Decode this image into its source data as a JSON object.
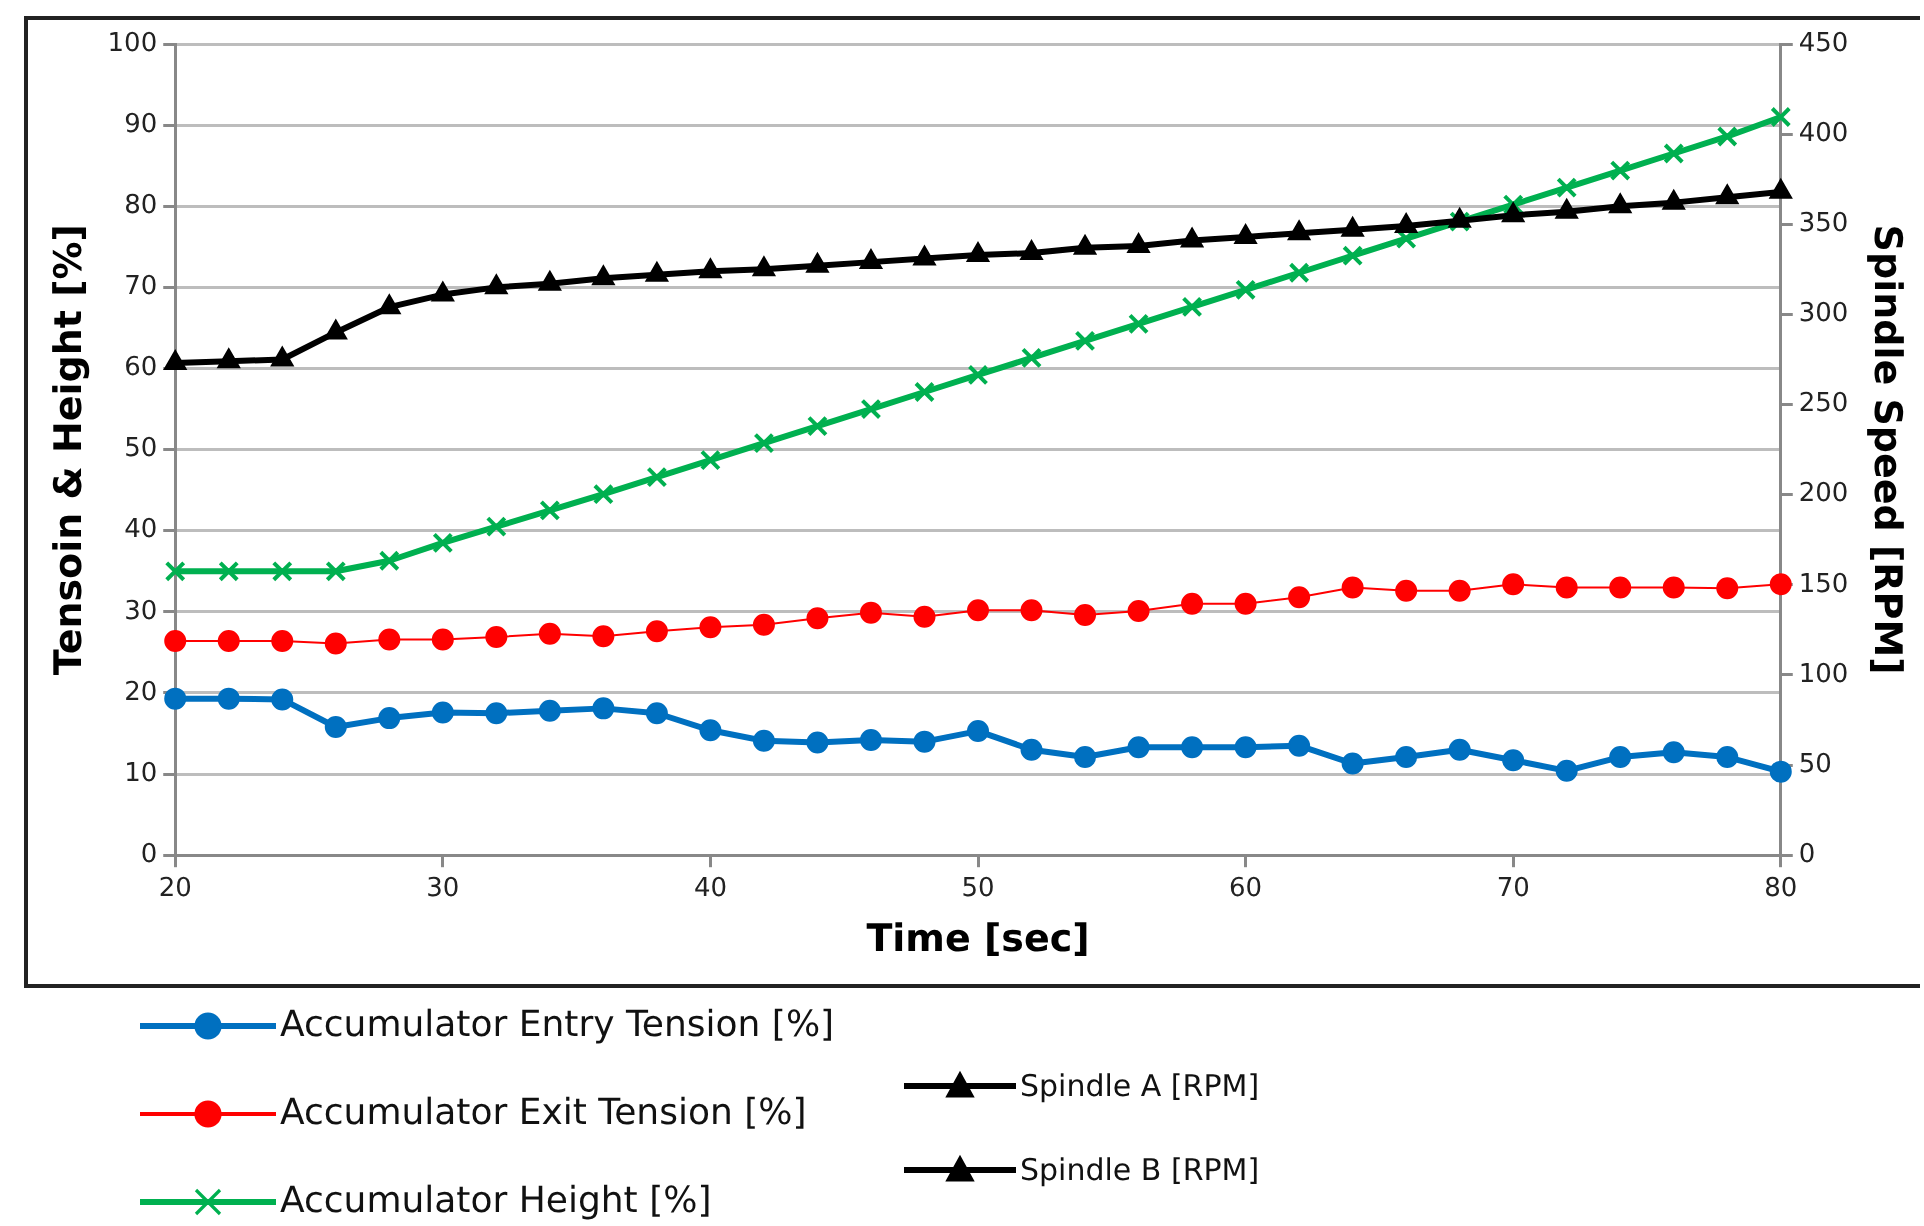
{
  "chart_data": {
    "type": "line",
    "xlabel": "Time [sec]",
    "ylabel": "Tensoin & Height [%]",
    "y2label": "Spindle Speed [RPM]",
    "x": [
      20,
      22,
      24,
      26,
      28,
      30,
      32,
      34,
      36,
      38,
      40,
      42,
      44,
      46,
      48,
      50,
      52,
      54,
      56,
      58,
      60,
      62,
      64,
      66,
      68,
      70,
      72,
      74,
      76,
      78,
      80
    ],
    "xlim": [
      20,
      80
    ],
    "xticks": [
      20,
      30,
      40,
      50,
      60,
      70,
      80
    ],
    "ylim": [
      0,
      100
    ],
    "yticks": [
      0,
      10,
      20,
      30,
      40,
      50,
      60,
      70,
      80,
      90,
      100
    ],
    "y2lim": [
      0,
      450
    ],
    "y2ticks": [
      0,
      50,
      100,
      150,
      200,
      250,
      300,
      350,
      400,
      450
    ],
    "grid": "y",
    "legend": "bottom",
    "series": [
      {
        "name": "Accumulator Entry Tension [%]",
        "color": "#0070c0",
        "marker": "circle",
        "values": [
          19.3,
          19.3,
          19.2,
          15.8,
          16.9,
          17.6,
          17.5,
          17.8,
          18.1,
          17.5,
          15.4,
          14.1,
          13.9,
          14.2,
          14.0,
          15.3,
          13.0,
          12.1,
          13.3,
          13.3,
          13.3,
          13.5,
          11.3,
          12.1,
          13.0,
          11.7,
          10.4,
          12.1,
          12.7,
          12.1,
          10.3
        ]
      },
      {
        "name": "Accumulator Exit Tension [%]",
        "color": "#ff0000",
        "marker": "circle",
        "values": [
          26.4,
          26.4,
          26.4,
          26.1,
          26.6,
          26.6,
          26.9,
          27.3,
          27.0,
          27.6,
          28.1,
          28.4,
          29.2,
          29.9,
          29.4,
          30.2,
          30.2,
          29.6,
          30.1,
          31.0,
          31.0,
          31.8,
          33.0,
          32.6,
          32.6,
          33.4,
          33.0,
          33.0,
          33.0,
          32.9,
          33.4
        ]
      },
      {
        "name": "Accumulator Height [%]",
        "color": "#00b050",
        "marker": "cross",
        "values": [
          35,
          35,
          35,
          35,
          36.3,
          38.5,
          40.5,
          42.5,
          44.5,
          46.6,
          48.7,
          50.8,
          52.9,
          55,
          57.1,
          59.2,
          61.3,
          63.4,
          65.5,
          67.6,
          69.7,
          71.8,
          73.9,
          76,
          78.1,
          80.2,
          82.3,
          84.4,
          86.5,
          88.6,
          91
        ]
      },
      {
        "name": "Spindle A [RPM]",
        "color": "#000000",
        "marker": "triangle",
        "axis": "y2",
        "values": [
          273,
          274,
          275,
          290,
          304,
          311,
          315,
          317,
          320,
          322,
          324,
          325,
          327,
          329,
          331,
          333,
          334,
          337,
          338,
          341,
          343,
          345,
          347,
          349,
          352,
          355,
          357,
          360,
          362,
          365,
          368
        ]
      },
      {
        "name": "Spindle B [RPM]",
        "color": "#000000",
        "marker": "triangle",
        "axis": "y2",
        "values": [
          null,
          null,
          null,
          null,
          null,
          null,
          null,
          null,
          null,
          null,
          null,
          null,
          null,
          null,
          null,
          null,
          null,
          null,
          null,
          null,
          null,
          null,
          null,
          null,
          null,
          null,
          null,
          null,
          null,
          null,
          null
        ]
      }
    ]
  }
}
